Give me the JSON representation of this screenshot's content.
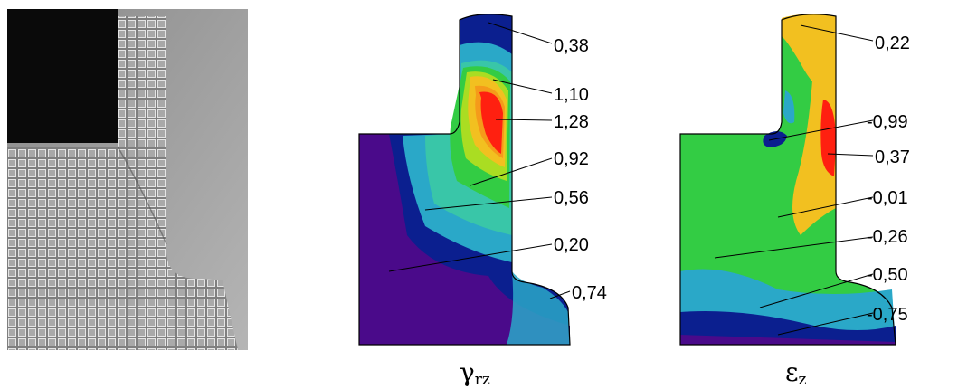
{
  "left_panel": {
    "callouts": [
      "0,38",
      "1,10",
      "1,28",
      "0,92",
      "0,56",
      "0,20",
      "0,74"
    ],
    "caption": {
      "symbol": "γ",
      "subscript": "rz"
    }
  },
  "right_panel": {
    "callouts": [
      "0,22",
      "-0,99",
      "0,37",
      "-0,01",
      "-0,26",
      "-0,50",
      "-0,75"
    ],
    "caption": {
      "symbol": "ε",
      "subscript": "z"
    }
  },
  "colors": {
    "blue_dark": "#0b1f8f",
    "purple": "#4a0a8a",
    "cyan": "#2aa8c8",
    "teal": "#39c6a8",
    "green": "#33cc44",
    "yellow_green": "#aadd22",
    "yellow": "#f2c020",
    "orange": "#f59b1a",
    "red": "#ff2010"
  }
}
